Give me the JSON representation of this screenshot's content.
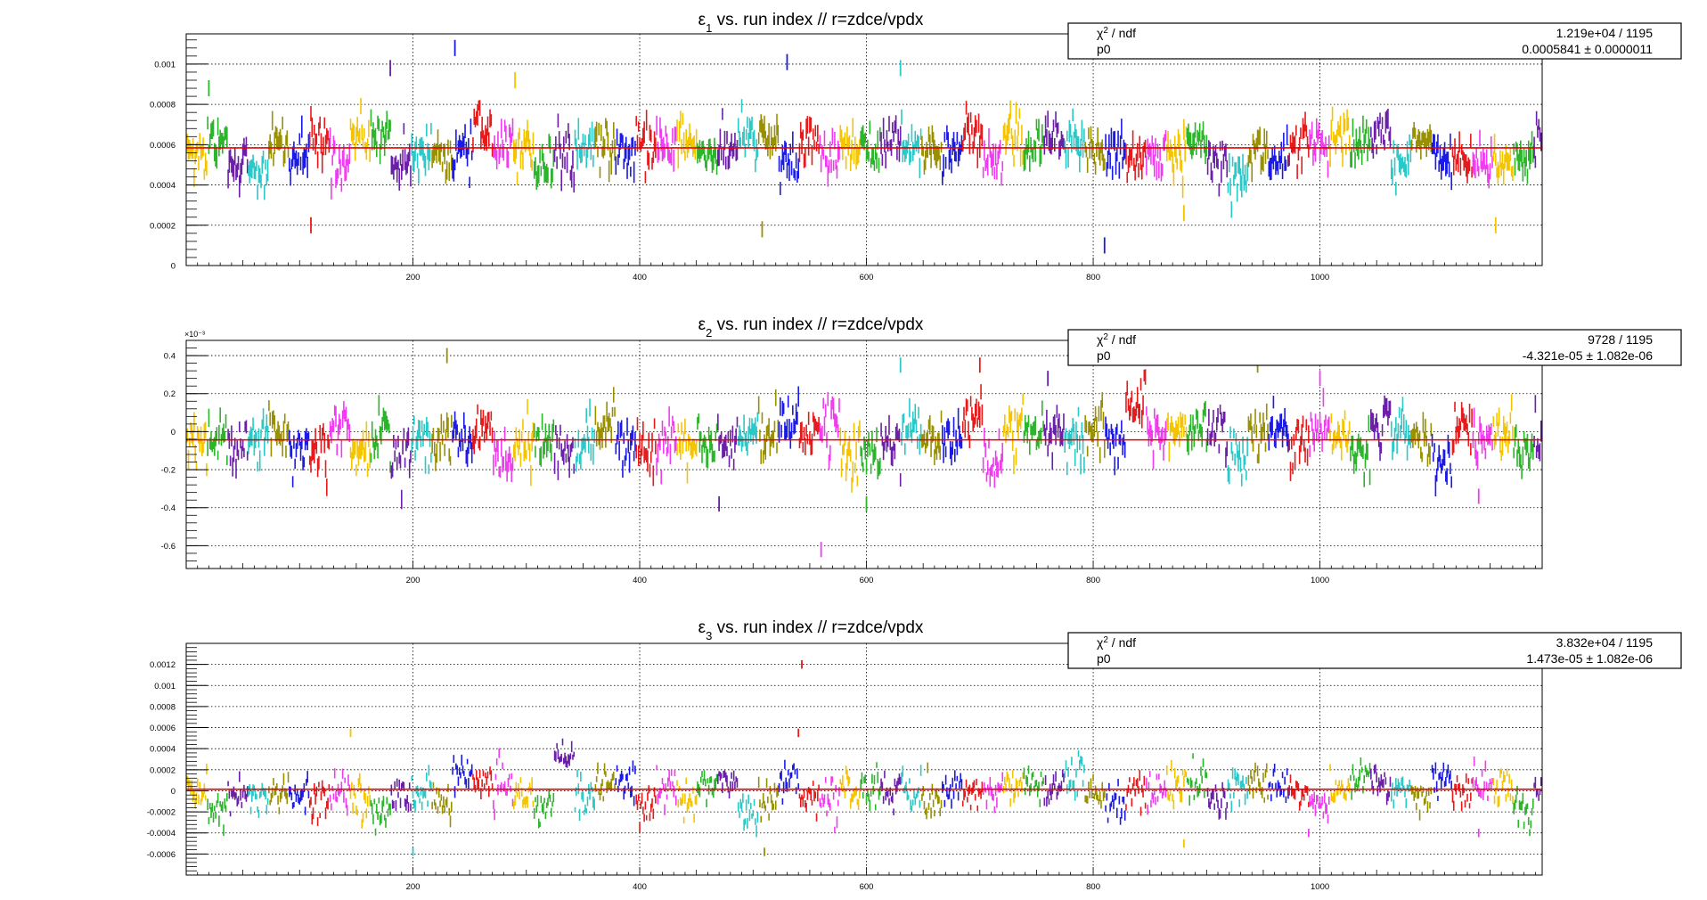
{
  "chart_data": [
    {
      "type": "scatter",
      "title_prefix": "ε",
      "title_sub": "1",
      "title_suffix": " vs. run index // r=zdce/vpdx",
      "xlim": [
        0,
        1196
      ],
      "ylim": [
        0,
        0.00115
      ],
      "grid": true,
      "x_ticks": [
        200,
        400,
        600,
        800,
        1000
      ],
      "y_ticks": [
        0,
        0.0002,
        0.0004,
        0.0006,
        0.0008,
        0.001
      ],
      "y_tick_labels": [
        "0",
        "0.0002",
        "0.0004",
        "0.0006",
        "0.0008",
        "0.001"
      ],
      "y_multiplier": "",
      "fit": {
        "p0": 0.0005841
      },
      "stats": {
        "chi2_label": "χ",
        "chi2_sup": "2",
        "chi2_suffix": " / ndf",
        "chi2_value": "1.219e+04 / 1195",
        "p0_label": "p0",
        "p0_value": "0.0005841 ± 0.0000011"
      },
      "sim": {
        "base": 0.00057,
        "noise": 9.5e-05,
        "err": 4e-05,
        "outliers": [
          [
            20,
            0.00088
          ],
          [
            180,
            0.00098
          ],
          [
            237,
            0.00108
          ],
          [
            290,
            0.00092
          ],
          [
            530,
            0.00101
          ],
          [
            630,
            0.00098
          ],
          [
            508,
            0.00018
          ],
          [
            110,
            0.0002
          ],
          [
            810,
            0.0001
          ],
          [
            880,
            0.00026
          ],
          [
            1155,
            0.0002
          ]
        ]
      }
    },
    {
      "type": "scatter",
      "title_prefix": "ε",
      "title_sub": "2",
      "title_suffix": " vs. run index // r=zdce/vpdx",
      "xlim": [
        0,
        1196
      ],
      "ylim": [
        -0.00072,
        0.00048
      ],
      "grid": true,
      "x_ticks": [
        200,
        400,
        600,
        800,
        1000
      ],
      "y_ticks": [
        -0.0006,
        -0.0004,
        -0.0002,
        0,
        0.0002,
        0.0004
      ],
      "y_tick_labels": [
        "-0.6",
        "-0.4",
        "-0.2",
        "0",
        "0.2",
        "0.4"
      ],
      "y_multiplier": "×10⁻³",
      "fit": {
        "p0": -4.321e-05
      },
      "stats": {
        "chi2_label": "χ",
        "chi2_sup": "2",
        "chi2_suffix": " / ndf",
        "chi2_value": "9728 / 1195",
        "p0_label": "p0",
        "p0_value": "-4.321e-05 ± 1.082e-06"
      },
      "sim": {
        "base": -4e-05,
        "noise": 0.00011,
        "err": 4e-05,
        "outliers": [
          [
            230,
            0.0004
          ],
          [
            630,
            0.00035
          ],
          [
            700,
            0.00035
          ],
          [
            760,
            0.00028
          ],
          [
            945,
            0.00035
          ],
          [
            1000,
            0.00028
          ],
          [
            560,
            -0.00062
          ],
          [
            470,
            -0.00038
          ],
          [
            600,
            -0.00038
          ],
          [
            1140,
            -0.00034
          ]
        ]
      }
    },
    {
      "type": "scatter",
      "title_prefix": "ε",
      "title_sub": "3",
      "title_suffix": " vs. run index // r=zdce/vpdx",
      "xlim": [
        0,
        1196
      ],
      "ylim": [
        -0.0008,
        0.0014
      ],
      "grid": true,
      "x_ticks": [
        200,
        400,
        600,
        800,
        1000
      ],
      "y_ticks": [
        -0.0006,
        -0.0004,
        -0.0002,
        0,
        0.0002,
        0.0004,
        0.0006,
        0.0008,
        0.001,
        0.0012
      ],
      "y_tick_labels": [
        "-0.0006",
        "-0.0004",
        "-0.0002",
        "0",
        "0.0002",
        "0.0004",
        "0.0006",
        "0.0008",
        "0.001",
        "0.0012"
      ],
      "y_multiplier": "",
      "fit": {
        "p0": 1.473e-05
      },
      "stats": {
        "chi2_label": "χ",
        "chi2_sup": "2",
        "chi2_suffix": " / ndf",
        "chi2_value": "3.832e+04 / 1195",
        "p0_label": "p0",
        "p0_value": "1.473e-05 ± 1.082e-06"
      },
      "sim": {
        "base": 1e-05,
        "noise": 0.00015,
        "err": 4e-05,
        "outliers": [
          [
            543,
            0.0012
          ],
          [
            540,
            0.00055
          ],
          [
            145,
            0.00055
          ],
          [
            200,
            -0.00058
          ],
          [
            510,
            -0.00058
          ],
          [
            880,
            -0.0005
          ],
          [
            990,
            -0.0004
          ],
          [
            1140,
            -0.0004
          ]
        ]
      }
    }
  ],
  "colors": {
    "series": [
      "#f5c400",
      "#2ab52a",
      "#6b1fa8",
      "#2bc8c8",
      "#999000",
      "#1a1ae6",
      "#e61a1a",
      "#f03cf0"
    ],
    "fit_line": "#e60000",
    "grid": "#000000",
    "axis": "#000000"
  }
}
